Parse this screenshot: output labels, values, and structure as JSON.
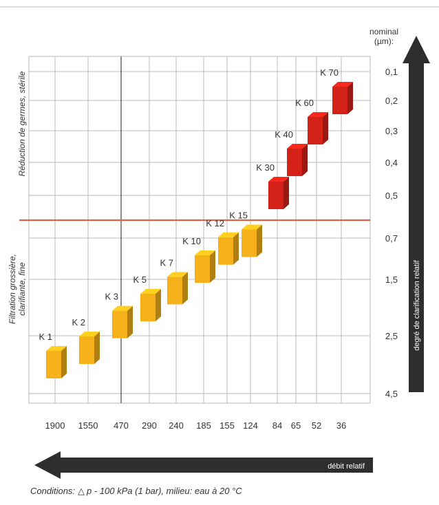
{
  "chart_data": {
    "type": "bar",
    "title": "",
    "x_tick_labels": [
      "1900",
      "1550",
      "470",
      "290",
      "240",
      "185",
      "155",
      "124",
      "84",
      "65",
      "52",
      "36"
    ],
    "y_tick_labels": [
      "0,1",
      "0,2",
      "0,3",
      "0,4",
      "0,5",
      "0,7",
      "1,5",
      "2,5",
      "4,5"
    ],
    "y_axis_title": [
      "nominal",
      "(µm):"
    ],
    "y_axis_direction": "reversed",
    "zone_labels": {
      "upper": "Réduction de germes, stérile",
      "lower": [
        "Filtration grossière,",
        "clarifiante, fine"
      ]
    },
    "separator_y": 0.6,
    "items": [
      {
        "name": "K 1",
        "x": "1900",
        "y": 3.5,
        "group": "Filtration grossière"
      },
      {
        "name": "K 2",
        "x": "1550",
        "y": 3.0,
        "group": "Filtration grossière"
      },
      {
        "name": "K 3",
        "x": "470",
        "y": 2.3,
        "group": "Filtration grossière"
      },
      {
        "name": "K 5",
        "x": "290",
        "y": 2.0,
        "group": "Filtration grossière"
      },
      {
        "name": "K 7",
        "x": "240",
        "y": 1.7,
        "group": "Filtration grossière"
      },
      {
        "name": "K 10",
        "x": "185",
        "y": 1.3,
        "group": "Filtration grossière"
      },
      {
        "name": "K 12",
        "x": "155",
        "y": 0.95,
        "group": "Filtration grossière"
      },
      {
        "name": "K 15",
        "x": "124",
        "y": 0.8,
        "group": "Filtration grossière"
      },
      {
        "name": "K 30",
        "x": "84",
        "y": 0.5,
        "group": "Réduction de germes"
      },
      {
        "name": "K 40",
        "x": "65",
        "y": 0.4,
        "group": "Réduction de germes"
      },
      {
        "name": "K 60",
        "x": "52",
        "y": 0.3,
        "group": "Réduction de germes"
      },
      {
        "name": "K 70",
        "x": "36",
        "y": 0.2,
        "group": "Réduction de germes"
      }
    ],
    "grid": true,
    "colors": {
      "yellow": "#f5b01a",
      "red": "#d42218",
      "separator": "#e0604a",
      "arrow": "#2e2e2e"
    }
  },
  "arrows": {
    "right_label": "degré de clarification relatif",
    "bottom_label": "débit relatif"
  },
  "conditions": {
    "prefix": "Conditions:",
    "delta_symbol": "△",
    "text": "p - 100 kPa (1 bar), milieu: eau à 20 °C"
  }
}
